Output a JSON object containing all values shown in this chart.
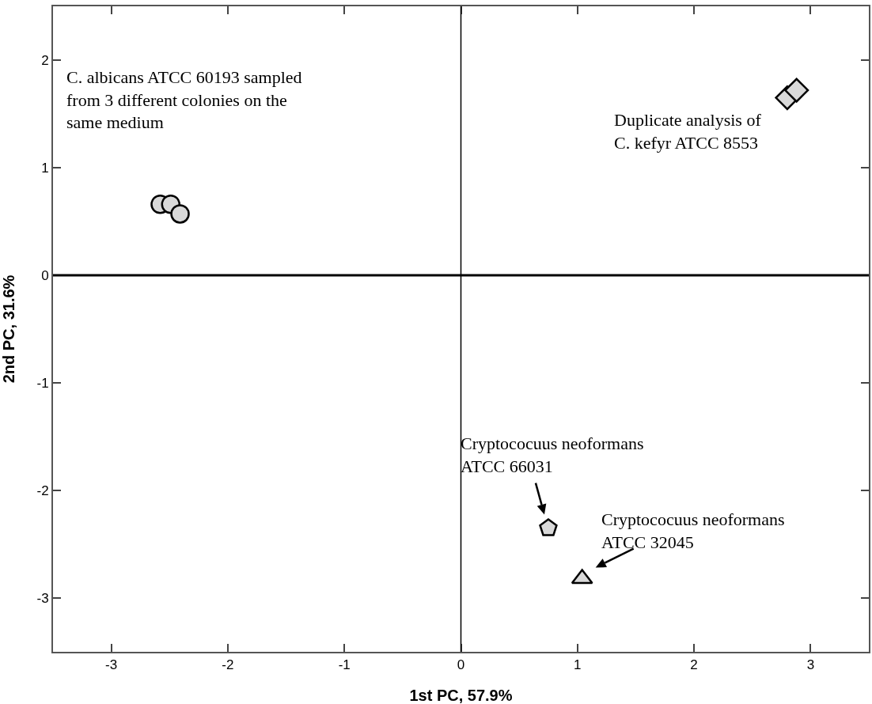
{
  "chart_data": {
    "type": "scatter",
    "xlabel": "1st PC, 57.9%",
    "ylabel": "2nd PC, 31.6%",
    "xlim": [
      -3.5,
      3.5
    ],
    "xticks": [
      -3,
      -2,
      -1,
      0,
      1,
      2,
      3
    ],
    "ylim": [
      -3.5,
      2.5
    ],
    "yticks": [
      -3,
      -2,
      -1,
      0,
      1,
      2
    ],
    "grid": false,
    "series": [
      {
        "color": "#d9d9d9",
        "marker": "circle",
        "x": [
          -2.58,
          -2.49,
          -2.41
        ],
        "values": [
          0.66,
          0.66,
          0.57
        ]
      },
      {
        "color": "#d9d9d9",
        "marker": "diamond",
        "x": [
          2.8,
          2.88
        ],
        "values": [
          1.65,
          1.72
        ]
      },
      {
        "color": "#d9d9d9",
        "x": [
          0.75
        ],
        "values": [
          -2.35
        ]
      },
      {
        "color": "#d9d9d9",
        "marker": "triangle",
        "x": [
          1.04
        ],
        "values": [
          -2.82
        ]
      }
    ],
    "ref_lines": [
      {
        "axis": "x",
        "value": 0,
        "color": "#000000"
      },
      {
        "axis": "y",
        "value": 0,
        "color": "#000000"
      }
    ],
    "annotations": [
      "C. albicans ATCC 60193 sampled\nfrom 3 different colonies on the\nsame medium",
      "Duplicate analysis of\nC. kefyr ATCC 8553",
      {
        "text": "Cryptococuus neoformans\nATCC 66031",
        "x": 0.75,
        "y": -2.35
      },
      {
        "text": "Cryptococuus neoformans\nATCC 32045",
        "x": 1.04,
        "y": -2.82
      }
    ]
  }
}
